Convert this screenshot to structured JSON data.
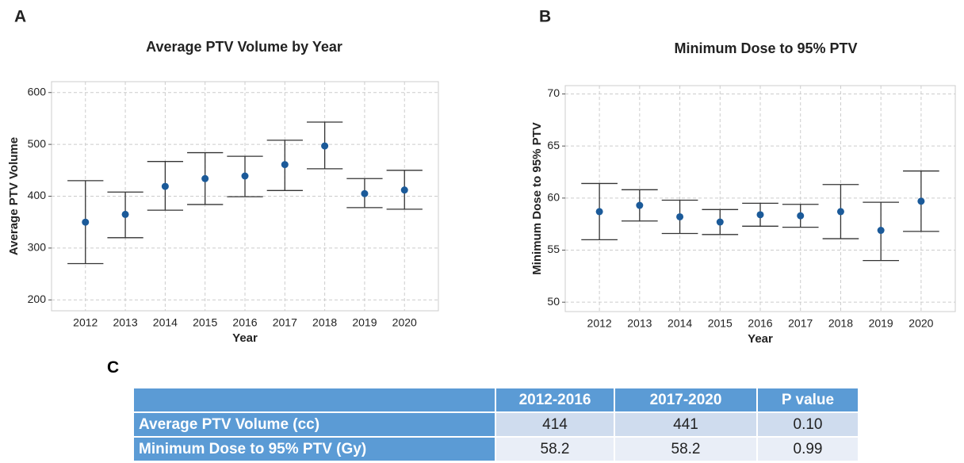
{
  "chart_data": [
    {
      "type": "errorbar",
      "panel": "A",
      "title": "Average PTV Volume by Year",
      "x_label": "Year",
      "y_label": "Average PTV Volume",
      "categories": [
        "2012",
        "2013",
        "2014",
        "2015",
        "2016",
        "2017",
        "2018",
        "2019",
        "2020"
      ],
      "series": [
        {
          "color": "#1b5a99",
          "values": [
            350,
            365,
            419,
            434,
            439,
            461,
            497,
            405,
            412
          ],
          "lower": [
            270,
            320,
            373,
            384,
            399,
            411,
            453,
            378,
            375
          ],
          "upper": [
            430,
            408,
            467,
            484,
            477,
            508,
            543,
            434,
            450
          ]
        }
      ],
      "ylim": [
        179,
        621
      ],
      "yticks": [
        200,
        300,
        400,
        500,
        600
      ],
      "grid": true
    },
    {
      "type": "errorbar",
      "panel": "B",
      "title": "Minimum Dose to 95% PTV",
      "x_label": "Year",
      "y_label": "Minimum Dose to 95% PTV",
      "categories": [
        "2012",
        "2013",
        "2014",
        "2015",
        "2016",
        "2017",
        "2018",
        "2019",
        "2020"
      ],
      "series": [
        {
          "color": "#1b5a99",
          "values": [
            58.7,
            59.3,
            58.2,
            57.7,
            58.4,
            58.3,
            58.7,
            56.9,
            59.7
          ],
          "lower": [
            56.0,
            57.8,
            56.6,
            56.5,
            57.3,
            57.2,
            56.1,
            54.0,
            56.8
          ],
          "upper": [
            61.4,
            60.8,
            59.8,
            58.9,
            59.5,
            59.4,
            61.3,
            59.6,
            62.6
          ]
        }
      ],
      "ylim": [
        49.1,
        70.8
      ],
      "yticks": [
        50,
        55,
        60,
        65,
        70
      ],
      "grid": true
    }
  ],
  "table": {
    "panel": "C",
    "columns": [
      "2012-2016",
      "2017-2020",
      "P value"
    ],
    "rows": [
      [
        "Average PTV Volume (cc)",
        "414",
        "441",
        "0.10"
      ],
      [
        "Minimum Dose to 95% PTV (Gy)",
        "58.2",
        "58.2",
        "0.99"
      ]
    ]
  }
}
